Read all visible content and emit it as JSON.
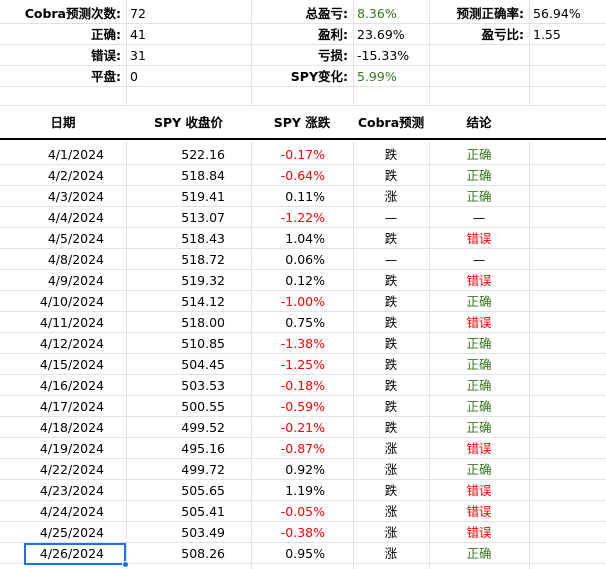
{
  "summary": {
    "predictions_label": "Cobra预测次数:",
    "predictions_value": "72",
    "correct_label": "正确:",
    "correct_value": "41",
    "wrong_label": "错误:",
    "wrong_value": "31",
    "flat_label": "平盘:",
    "flat_value": "0",
    "total_pnl_label": "总盈亏:",
    "total_pnl_value": "8.36%",
    "profit_label": "盈利:",
    "profit_value": "23.69%",
    "loss_label": "亏损:",
    "loss_value": "-15.33%",
    "spy_change_label": "SPY变化:",
    "spy_change_value": "5.99%",
    "accuracy_label": "预测正确率:",
    "accuracy_value": "56.94%",
    "pl_ratio_label": "盈亏比:",
    "pl_ratio_value": "1.55"
  },
  "table": {
    "headers": [
      "日期",
      "SPY 收盘价",
      "SPY 涨跌",
      "Cobra预测",
      "结论"
    ],
    "rows": [
      {
        "date": "4/1/2024",
        "close": "522.16",
        "change": "-0.17%",
        "pred": "跌",
        "result": "正确"
      },
      {
        "date": "4/2/2024",
        "close": "518.84",
        "change": "-0.64%",
        "pred": "跌",
        "result": "正确"
      },
      {
        "date": "4/3/2024",
        "close": "519.41",
        "change": "0.11%",
        "pred": "涨",
        "result": "正确"
      },
      {
        "date": "4/4/2024",
        "close": "513.07",
        "change": "-1.22%",
        "pred": "—",
        "result": "—"
      },
      {
        "date": "4/5/2024",
        "close": "518.43",
        "change": "1.04%",
        "pred": "跌",
        "result": "错误"
      },
      {
        "date": "4/8/2024",
        "close": "518.72",
        "change": "0.06%",
        "pred": "—",
        "result": "—"
      },
      {
        "date": "4/9/2024",
        "close": "519.32",
        "change": "0.12%",
        "pred": "跌",
        "result": "错误"
      },
      {
        "date": "4/10/2024",
        "close": "514.12",
        "change": "-1.00%",
        "pred": "跌",
        "result": "正确"
      },
      {
        "date": "4/11/2024",
        "close": "518.00",
        "change": "0.75%",
        "pred": "跌",
        "result": "错误"
      },
      {
        "date": "4/12/2024",
        "close": "510.85",
        "change": "-1.38%",
        "pred": "跌",
        "result": "正确"
      },
      {
        "date": "4/15/2024",
        "close": "504.45",
        "change": "-1.25%",
        "pred": "跌",
        "result": "正确"
      },
      {
        "date": "4/16/2024",
        "close": "503.53",
        "change": "-0.18%",
        "pred": "跌",
        "result": "正确"
      },
      {
        "date": "4/17/2024",
        "close": "500.55",
        "change": "-0.59%",
        "pred": "跌",
        "result": "正确"
      },
      {
        "date": "4/18/2024",
        "close": "499.52",
        "change": "-0.21%",
        "pred": "跌",
        "result": "正确"
      },
      {
        "date": "4/19/2024",
        "close": "495.16",
        "change": "-0.87%",
        "pred": "涨",
        "result": "错误"
      },
      {
        "date": "4/22/2024",
        "close": "499.72",
        "change": "0.92%",
        "pred": "涨",
        "result": "正确"
      },
      {
        "date": "4/23/2024",
        "close": "505.65",
        "change": "1.19%",
        "pred": "跌",
        "result": "错误"
      },
      {
        "date": "4/24/2024",
        "close": "505.41",
        "change": "-0.05%",
        "pred": "涨",
        "result": "错误"
      },
      {
        "date": "4/25/2024",
        "close": "503.49",
        "change": "-0.38%",
        "pred": "涨",
        "result": "错误"
      },
      {
        "date": "4/26/2024",
        "close": "508.26",
        "change": "0.95%",
        "pred": "涨",
        "result": "正确"
      }
    ]
  },
  "colors": {
    "positive": "#38761d",
    "negative": "#ff0000",
    "selection": "#1a73e8",
    "gridline": "#e2e2e2"
  }
}
